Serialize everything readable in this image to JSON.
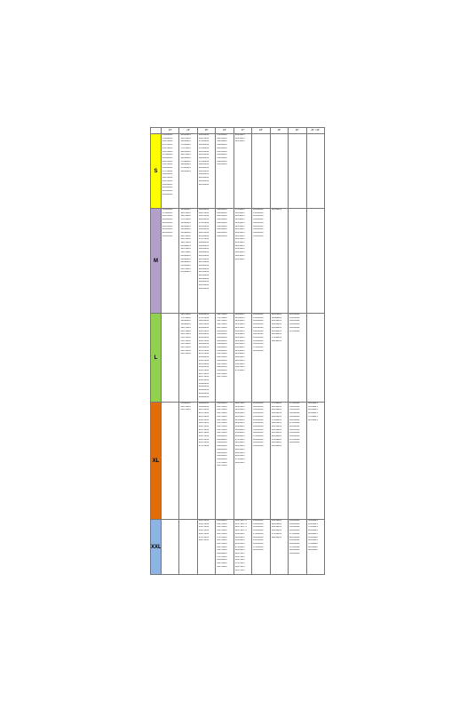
{
  "colors": {
    "S": "#ffff00",
    "M": "#b1a0c7",
    "L": "#92d050",
    "XL": "#e26b0a",
    "XXL": "#8db4e2"
  },
  "headers": [
    "13\"",
    "14\"",
    "15\"",
    "16\"",
    "17\"",
    "18\"",
    "19\"",
    "20\"",
    "21\" / 22\""
  ],
  "rows": [
    {
      "label": "S",
      "cells": [
        [
          "155/80R13",
          "155/80R13",
          "165/70R13",
          "175/70R13",
          "155/70R13",
          "165/70R13",
          "175/80R13",
          "185/60R13",
          "185/70R13",
          "155/70R14",
          "165/60R13",
          "175/70R14",
          "185/65R13",
          "185/70R13",
          "195/70R13",
          "165/65R13",
          "205/60R13",
          "215/60R13",
          "235/60R13"
        ],
        [
          "165/65R14",
          "165/70R14",
          "165/80R14",
          "175/65R14",
          "175/70R14",
          "185/65R14",
          "185/70R14",
          "185/60R14",
          "175/80R14",
          "195/60R14",
          "175/65R14",
          "185/65R14"
        ],
        [
          "165/65R15",
          "165/70R15",
          "175/65R15",
          "185/60R15",
          "175/60R15",
          "185/65R15",
          "195/55R15",
          "195/60R15",
          "175/60R15",
          "185/65R15",
          "205/60R15",
          "185/55R15",
          "195/50R15",
          "205/50R15",
          "215/50R15",
          "225/50R15"
        ],
        [
          "175/55R16",
          "185/55R16",
          "195/50R16",
          "195/60R16",
          "205/45R16",
          "205/55R16",
          "215/40R16",
          "215/45R16",
          "225/45R16",
          "235/45R16"
        ],
        [
          "205/45R17",
          "215/45R17",
          "225/45R17"
        ],
        [],
        [],
        [],
        []
      ]
    },
    {
      "label": "M",
      "cells": [
        [
          "185/80R13",
          "175/80R13",
          "195/70R13",
          "205/60R13",
          "205/65R13",
          "185/70R13",
          "215/60R13",
          "225/60R13",
          "195/65R13"
        ],
        [
          "185/65R14",
          "185/70R14",
          "195/70R14",
          "175/70R14",
          "195/65R14",
          "185/80R14",
          "195/80R14",
          "205/60R14",
          "205/70R14",
          "185/75R14",
          "195/75R14",
          "205/65R14",
          "185/70R14",
          "195/70R14",
          "205/60R14",
          "225/60R14",
          "205/80R14",
          "215/65R14",
          "225/70R14",
          "235/60R14"
        ],
        [
          "195/65R15",
          "185/70R15",
          "195/70R15",
          "205/65R15",
          "175/65R15",
          "215/65R15",
          "195/65R15",
          "205/70R15",
          "215/60R15",
          "175/75R15",
          "195/80R15",
          "185/60R15",
          "185/65R15",
          "195/60R15",
          "205/55R15",
          "215/55R15",
          "225/55R15",
          "215/60R15",
          "205/50R15",
          "215/50R15",
          "225/50R15",
          "225/60R15",
          "235/60R15",
          "245/55R15",
          "255/55R15"
        ],
        [
          "195/60R16",
          "205/60R16",
          "205/55R16",
          "215/55R16",
          "225/55R16",
          "215/50R16",
          "225/50R16",
          "235/50R16",
          "245/45R16"
        ],
        [
          "175/50R17",
          "185/45R17",
          "205/40R17",
          "215/40R17",
          "215/45R17",
          "225/45R17",
          "225/55R17",
          "235/45R17",
          "245/45R17",
          "205/55R17",
          "215/55R17",
          "225/50R17",
          "235/50R17",
          "205/45R17",
          "245/40R17",
          "215/50R17"
        ],
        [
          "225/40R18",
          "215/40R18",
          "225/45R18",
          "235/40R18",
          "245/35R18",
          "225/35R18",
          "235/35R18",
          "245/40R18",
          "255/35R18"
        ],
        [
          "245/35R19"
        ],
        [],
        []
      ]
    },
    {
      "label": "L",
      "cells": [
        [],
        [
          "195/70R14",
          "175/70R14",
          "185/80R14",
          "195/80R14",
          "195/75R14",
          "205/70R14",
          "205/75R14",
          "215/70R14",
          "215/75R14",
          "225/70R14",
          "225/75R14",
          "235/70R14",
          "245/70R14"
        ],
        [
          "185/65R15",
          "175/70R15",
          "195/65R15",
          "185/70R15",
          "205/60R15",
          "195/70R15",
          "205/65R15",
          "215/65R15",
          "205/70R15",
          "215/60R15",
          "225/60R15",
          "215/70R15",
          "225/70R15",
          "235/60R15",
          "235/70R15",
          "225/65R15",
          "235/65R15",
          "255/70R15",
          "215/75R15",
          "225/75R15",
          "235/75R15",
          "195/80R15",
          "205/80R15",
          "215/80R15",
          "225/80R15",
          "235/80R15"
        ],
        [
          "195/75R16",
          "175/70R16",
          "185/70R16",
          "195/70R16",
          "205/70R16",
          "205/65R16",
          "215/65R16",
          "225/60R16",
          "225/65R16",
          "215/60R16",
          "235/60R16",
          "245/60R16",
          "215/70R16",
          "225/70R16",
          "235/65R16",
          "235/70R16",
          "245/65R16",
          "255/65R16",
          "265/70R16",
          "265/75R16"
        ],
        [
          "205/60R17",
          "215/60R17",
          "225/60R17",
          "215/55R17",
          "225/55R17",
          "235/55R17",
          "235/60R17",
          "245/45R17",
          "245/50R17",
          "255/45R17",
          "255/50R17",
          "215/50R17",
          "225/50R17",
          "235/45R17",
          "245/55R17",
          "255/55R17",
          "265/55R17",
          "275/45R17"
        ],
        [
          "225/50R18",
          "235/45R18",
          "245/40R18",
          "225/55R18",
          "235/50R18",
          "245/45R18",
          "235/55R18",
          "215/55R18",
          "255/40R18",
          "265/35R18",
          "275/35R18",
          "285/30R18"
        ],
        [
          "225/45R19",
          "235/40R19",
          "245/35R19",
          "255/35R19",
          "245/40R19",
          "255/30R19",
          "265/30R19",
          "275/30R19",
          "285/30R19"
        ],
        [
          "225/35R20",
          "235/35R20",
          "245/35R20",
          "255/30R20",
          "265/30R20",
          "275/30R20"
        ],
        []
      ]
    },
    {
      "label": "XL",
      "cells": [
        [],
        [
          "215/80R14",
          "225/75R14",
          "235/75R14"
        ],
        [
          "185/80R15",
          "195/80R15",
          "205/70R15",
          "215/70R15",
          "225/70R15",
          "235/70R15",
          "245/70R15",
          "205/75R15",
          "215/75R15",
          "225/75R15",
          "235/75R15",
          "255/70R15",
          "265/70R15",
          "275/70R15"
        ],
        [
          "215/65R16",
          "225/70R16",
          "235/70R16",
          "245/70R16",
          "255/70R16",
          "265/70R16",
          "215/75R16",
          "225/75R16",
          "235/75R16",
          "245/75R16",
          "235/85R16",
          "205/80R16",
          "215/85R16",
          "225/65R16",
          "225/85R16",
          "235/65R16",
          "245/65R16",
          "255/65R16",
          "275/70R16",
          "265/75R16"
        ],
        [
          "205/70R17",
          "215/65R17",
          "225/65R17",
          "235/65R17",
          "245/65R17",
          "215/60R17",
          "225/60R17",
          "235/60R17",
          "245/60R17",
          "255/60R17",
          "265/60R17",
          "275/55R17",
          "225/55R17",
          "235/55R17",
          "245/55R17",
          "255/55R17",
          "265/65R17",
          "275/65R17",
          "285/65R17"
        ],
        [
          "215/55R18",
          "225/55R18",
          "235/55R18",
          "245/55R18",
          "255/55R18",
          "225/60R18",
          "235/60R18",
          "245/60R18",
          "255/60R18",
          "265/60R18",
          "275/60R18",
          "285/60R18",
          "225/65R18",
          "235/65R18"
        ],
        [
          "175/50R19",
          "235/50R19",
          "245/45R19",
          "255/45R19",
          "265/45R19",
          "275/40R19",
          "225/55R19",
          "235/55R19",
          "245/55R19",
          "255/50R19",
          "265/50R19",
          "275/45R19",
          "285/45R19",
          "295/40R19"
        ],
        [
          "175/45R20",
          "195/55R20",
          "235/45R20",
          "245/40R20",
          "255/40R20",
          "265/45R20",
          "275/40R20",
          "285/40R20",
          "295/35R20",
          "255/45R20",
          "265/40R20",
          "275/45R20",
          "285/45R20"
        ],
        [
          "245/35R21",
          "255/35R21",
          "265/35R21",
          "265/40R21",
          "275/35R21",
          "285/35R21"
        ]
      ]
    },
    {
      "label": "XXL",
      "cells": [
        [],
        [],
        [
          "245/70R15",
          "255/70R15",
          "235/75R15",
          "255/75R15",
          "265/75R15",
          "275/70R15",
          "285/70R15"
        ],
        [
          "235/80R16",
          "245/75R16",
          "255/70R16",
          "265/70R16",
          "265/75R16",
          "275/70R16",
          "285/70R16",
          "285/75R16",
          "245/70R16",
          "255/75R16",
          "265/80R16",
          "275/75R16",
          "285/65R16",
          "295/70R16",
          "305/70R16"
        ],
        [
          "235/70R17.5",
          "215/75R17.5",
          "225/75R17.5",
          "245/70R17.5",
          "235/65R17",
          "245/65R17",
          "255/65R17",
          "265/65R17",
          "275/65R17",
          "285/65R17",
          "245/70R17",
          "255/70R17",
          "265/70R17",
          "275/70R17",
          "285/70R17",
          "315/70R17"
        ],
        [
          "235/60R18",
          "245/60R18",
          "255/60R18",
          "265/60R18",
          "275/60R18",
          "285/60R18",
          "255/55R18",
          "265/55R18",
          "275/55R18",
          "285/55R18"
        ],
        [
          "235/55R19",
          "245/55R19",
          "255/55R19",
          "265/55R19",
          "275/55R19",
          "285/55R19"
        ],
        [
          "235/55R20",
          "245/50R20",
          "255/50R20",
          "265/50R20",
          "275/50R20",
          "285/50R20",
          "255/45R20",
          "265/45R20",
          "275/45R20",
          "285/45R20",
          "295/45R20"
        ],
        [
          "255/40R21",
          "265/45R21",
          "275/45R21",
          "285/45R21",
          "295/40R21",
          "255/45R22",
          "265/45R22",
          "275/40R22",
          "285/35R22",
          "295/35R22"
        ]
      ]
    }
  ]
}
